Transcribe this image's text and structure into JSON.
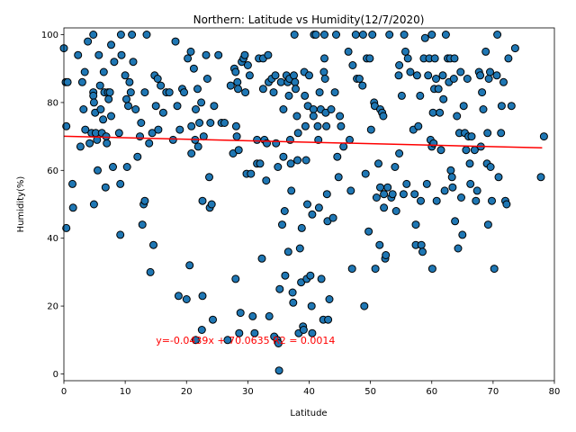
{
  "chart_data": {
    "type": "scatter",
    "title": "Northern: Latitude vs Humidity(12/7/2020)",
    "xlabel": "Latitude",
    "ylabel": "Humidity(%)",
    "xlim": [
      0,
      80
    ],
    "ylim": [
      -2,
      102
    ],
    "xticks": [
      "0",
      "10",
      "20",
      "30",
      "40",
      "50",
      "60",
      "70",
      "80"
    ],
    "yticks": [
      "0",
      "20",
      "40",
      "60",
      "80",
      "100"
    ],
    "grid": false,
    "marker_color": "#1f77b4",
    "marker_edge_color": "#000000",
    "regression": {
      "slope": -0.0439,
      "intercept": 70.0635,
      "r2": 0.0014,
      "x_range": [
        0,
        78
      ],
      "color": "#ff0000"
    },
    "annotation": {
      "text": "y=-0.0439x + 70.0635  R2 = 0.0014",
      "x": 15,
      "y": 10,
      "color": "#ff0000"
    },
    "points": [
      [
        0.0,
        96
      ],
      [
        0.3,
        86
      ],
      [
        0.4,
        73
      ],
      [
        0.4,
        43
      ],
      [
        0.6,
        86
      ],
      [
        1.4,
        56
      ],
      [
        1.5,
        49
      ],
      [
        2.3,
        94
      ],
      [
        2.7,
        67
      ],
      [
        3.0,
        86
      ],
      [
        3.2,
        78
      ],
      [
        3.4,
        89
      ],
      [
        3.5,
        72
      ],
      [
        3.9,
        98
      ],
      [
        4.2,
        68
      ],
      [
        4.5,
        71
      ],
      [
        4.8,
        100
      ],
      [
        4.8,
        83
      ],
      [
        4.8,
        82
      ],
      [
        4.9,
        50
      ],
      [
        4.9,
        80
      ],
      [
        5.1,
        77
      ],
      [
        5.2,
        71
      ],
      [
        5.4,
        69
      ],
      [
        5.5,
        60
      ],
      [
        5.7,
        94
      ],
      [
        5.9,
        85
      ],
      [
        6.0,
        78
      ],
      [
        6.2,
        71
      ],
      [
        6.4,
        75
      ],
      [
        6.5,
        89
      ],
      [
        6.6,
        83
      ],
      [
        6.8,
        55
      ],
      [
        6.9,
        70
      ],
      [
        7.0,
        68
      ],
      [
        7.2,
        83
      ],
      [
        7.3,
        81
      ],
      [
        7.5,
        83
      ],
      [
        7.7,
        76
      ],
      [
        7.7,
        97
      ],
      [
        8.0,
        61
      ],
      [
        8.2,
        92
      ],
      [
        9.0,
        71
      ],
      [
        9.2,
        56
      ],
      [
        9.2,
        41
      ],
      [
        9.3,
        100
      ],
      [
        9.4,
        94
      ],
      [
        10.0,
        88
      ],
      [
        10.2,
        81
      ],
      [
        10.3,
        61
      ],
      [
        10.5,
        79
      ],
      [
        10.7,
        86
      ],
      [
        10.9,
        83
      ],
      [
        11.1,
        100
      ],
      [
        11.3,
        92
      ],
      [
        11.7,
        78
      ],
      [
        12.0,
        64
      ],
      [
        12.4,
        70
      ],
      [
        12.6,
        74
      ],
      [
        12.8,
        44
      ],
      [
        13.0,
        50
      ],
      [
        13.2,
        51
      ],
      [
        13.5,
        100
      ],
      [
        13.2,
        83
      ],
      [
        13.9,
        68
      ],
      [
        14.1,
        30
      ],
      [
        14.4,
        71
      ],
      [
        14.6,
        38
      ],
      [
        14.8,
        88
      ],
      [
        15.0,
        79
      ],
      [
        15.3,
        87
      ],
      [
        15.4,
        72
      ],
      [
        15.8,
        85
      ],
      [
        16.2,
        77
      ],
      [
        16.7,
        83
      ],
      [
        17.2,
        83
      ],
      [
        17.8,
        69
      ],
      [
        18.2,
        98
      ],
      [
        18.5,
        79
      ],
      [
        18.7,
        23
      ],
      [
        18.9,
        72
      ],
      [
        19.3,
        84
      ],
      [
        19.6,
        83
      ],
      [
        20.0,
        22
      ],
      [
        20.2,
        93
      ],
      [
        20.5,
        32
      ],
      [
        20.7,
        95
      ],
      [
        20.8,
        73
      ],
      [
        20.8,
        65
      ],
      [
        21.2,
        90
      ],
      [
        21.4,
        69
      ],
      [
        21.5,
        10
      ],
      [
        21.5,
        78
      ],
      [
        21.8,
        84
      ],
      [
        21.9,
        67
      ],
      [
        22.1,
        74
      ],
      [
        22.4,
        80
      ],
      [
        22.5,
        13
      ],
      [
        22.6,
        51
      ],
      [
        22.6,
        23
      ],
      [
        22.8,
        70
      ],
      [
        23.2,
        94
      ],
      [
        23.4,
        87
      ],
      [
        23.7,
        58
      ],
      [
        23.8,
        49
      ],
      [
        23.9,
        74
      ],
      [
        24.1,
        50
      ],
      [
        24.3,
        16
      ],
      [
        24.5,
        79
      ],
      [
        25.2,
        94
      ],
      [
        25.7,
        74
      ],
      [
        26.2,
        74
      ],
      [
        26.7,
        10
      ],
      [
        27.2,
        85
      ],
      [
        27.6,
        65
      ],
      [
        27.8,
        90
      ],
      [
        28.0,
        89
      ],
      [
        28.0,
        28
      ],
      [
        28.1,
        73
      ],
      [
        28.2,
        70
      ],
      [
        28.3,
        86
      ],
      [
        28.4,
        84
      ],
      [
        28.5,
        66
      ],
      [
        28.6,
        12
      ],
      [
        28.8,
        18
      ],
      [
        29.0,
        92
      ],
      [
        29.3,
        93
      ],
      [
        29.5,
        94
      ],
      [
        29.6,
        83
      ],
      [
        29.8,
        59
      ],
      [
        30.0,
        91
      ],
      [
        30.3,
        88
      ],
      [
        30.5,
        59
      ],
      [
        30.8,
        17
      ],
      [
        31.1,
        12
      ],
      [
        31.5,
        69
      ],
      [
        31.5,
        62
      ],
      [
        31.8,
        93
      ],
      [
        32.0,
        62
      ],
      [
        32.3,
        34
      ],
      [
        32.5,
        84
      ],
      [
        32.5,
        93
      ],
      [
        32.7,
        69
      ],
      [
        33.0,
        57
      ],
      [
        33.1,
        68
      ],
      [
        33.3,
        94
      ],
      [
        33.4,
        86
      ],
      [
        33.5,
        17
      ],
      [
        33.9,
        87
      ],
      [
        34.2,
        83
      ],
      [
        34.3,
        11
      ],
      [
        34.5,
        88
      ],
      [
        34.6,
        68
      ],
      [
        34.8,
        10
      ],
      [
        34.9,
        61
      ],
      [
        35.0,
        9
      ],
      [
        35.1,
        1
      ],
      [
        35.2,
        25
      ],
      [
        35.4,
        86
      ],
      [
        35.6,
        44
      ],
      [
        35.8,
        78
      ],
      [
        35.8,
        64
      ],
      [
        36.0,
        48
      ],
      [
        36.1,
        29
      ],
      [
        36.3,
        88
      ],
      [
        36.5,
        86
      ],
      [
        36.6,
        36
      ],
      [
        36.7,
        82
      ],
      [
        36.8,
        87
      ],
      [
        36.9,
        69
      ],
      [
        37.0,
        62
      ],
      [
        37.1,
        54
      ],
      [
        37.3,
        24
      ],
      [
        37.4,
        21
      ],
      [
        37.5,
        88
      ],
      [
        37.6,
        100
      ],
      [
        37.7,
        86
      ],
      [
        37.8,
        84
      ],
      [
        38.0,
        76
      ],
      [
        38.1,
        63
      ],
      [
        38.2,
        71
      ],
      [
        38.3,
        12
      ],
      [
        38.5,
        37
      ],
      [
        38.7,
        27
      ],
      [
        38.8,
        43
      ],
      [
        39.0,
        14
      ],
      [
        39.1,
        13
      ],
      [
        39.2,
        89
      ],
      [
        39.3,
        82
      ],
      [
        39.4,
        73
      ],
      [
        39.5,
        63
      ],
      [
        39.6,
        28
      ],
      [
        39.7,
        50
      ],
      [
        39.8,
        79
      ],
      [
        40.0,
        88
      ],
      [
        40.2,
        29
      ],
      [
        40.4,
        20
      ],
      [
        40.5,
        47
      ],
      [
        40.5,
        12
      ],
      [
        40.7,
        78
      ],
      [
        40.7,
        76
      ],
      [
        40.8,
        100
      ],
      [
        41.1,
        100
      ],
      [
        41.4,
        73
      ],
      [
        41.5,
        69
      ],
      [
        41.6,
        49
      ],
      [
        41.7,
        83
      ],
      [
        41.9,
        78
      ],
      [
        42.0,
        28
      ],
      [
        42.3,
        16
      ],
      [
        42.4,
        89
      ],
      [
        42.5,
        100
      ],
      [
        42.5,
        93
      ],
      [
        42.6,
        87
      ],
      [
        42.7,
        77
      ],
      [
        42.8,
        73
      ],
      [
        42.9,
        53
      ],
      [
        43.0,
        45
      ],
      [
        43.1,
        16
      ],
      [
        43.3,
        22
      ],
      [
        43.6,
        78
      ],
      [
        43.9,
        46
      ],
      [
        44.2,
        83
      ],
      [
        44.4,
        100
      ],
      [
        44.6,
        64
      ],
      [
        44.8,
        58
      ],
      [
        45.0,
        76
      ],
      [
        45.2,
        73
      ],
      [
        45.6,
        67
      ],
      [
        46.4,
        95
      ],
      [
        46.6,
        69
      ],
      [
        46.8,
        54
      ],
      [
        47.0,
        31
      ],
      [
        47.1,
        91
      ],
      [
        47.6,
        100
      ],
      [
        47.8,
        87
      ],
      [
        48.2,
        87
      ],
      [
        48.7,
        85
      ],
      [
        48.8,
        100
      ],
      [
        49.0,
        20
      ],
      [
        49.2,
        59
      ],
      [
        49.4,
        93
      ],
      [
        49.7,
        42
      ],
      [
        49.9,
        93
      ],
      [
        50.1,
        72
      ],
      [
        50.3,
        100
      ],
      [
        50.6,
        80
      ],
      [
        50.7,
        79
      ],
      [
        50.8,
        31
      ],
      [
        51.0,
        52
      ],
      [
        51.3,
        62
      ],
      [
        51.5,
        38
      ],
      [
        51.6,
        78
      ],
      [
        51.6,
        55
      ],
      [
        51.9,
        77
      ],
      [
        52.1,
        76
      ],
      [
        52.2,
        53
      ],
      [
        52.2,
        49
      ],
      [
        52.4,
        34
      ],
      [
        52.5,
        35
      ],
      [
        52.8,
        55
      ],
      [
        53.1,
        100
      ],
      [
        53.4,
        52
      ],
      [
        53.6,
        53
      ],
      [
        54.0,
        61
      ],
      [
        54.2,
        48
      ],
      [
        54.6,
        88
      ],
      [
        54.7,
        91
      ],
      [
        54.7,
        65
      ],
      [
        55.1,
        82
      ],
      [
        55.4,
        53
      ],
      [
        55.5,
        100
      ],
      [
        55.7,
        95
      ],
      [
        55.9,
        56
      ],
      [
        56.1,
        93
      ],
      [
        56.5,
        89
      ],
      [
        57.0,
        72
      ],
      [
        57.2,
        53
      ],
      [
        57.4,
        44
      ],
      [
        57.4,
        38
      ],
      [
        57.6,
        88
      ],
      [
        57.8,
        73
      ],
      [
        58.1,
        82
      ],
      [
        58.2,
        51
      ],
      [
        58.3,
        38
      ],
      [
        58.5,
        36
      ],
      [
        58.7,
        93
      ],
      [
        58.9,
        99
      ],
      [
        59.2,
        56
      ],
      [
        59.4,
        88
      ],
      [
        59.6,
        93
      ],
      [
        59.8,
        69
      ],
      [
        60.0,
        100
      ],
      [
        60.0,
        67
      ],
      [
        60.1,
        31
      ],
      [
        60.2,
        77
      ],
      [
        60.3,
        68
      ],
      [
        60.4,
        84
      ],
      [
        60.5,
        93
      ],
      [
        60.7,
        87
      ],
      [
        60.8,
        51
      ],
      [
        61.1,
        84
      ],
      [
        61.3,
        77
      ],
      [
        61.5,
        66
      ],
      [
        61.8,
        88
      ],
      [
        61.9,
        81
      ],
      [
        62.1,
        54
      ],
      [
        62.3,
        100
      ],
      [
        62.6,
        93
      ],
      [
        62.8,
        86
      ],
      [
        63.0,
        93
      ],
      [
        63.1,
        60
      ],
      [
        63.3,
        58
      ],
      [
        63.4,
        55
      ],
      [
        63.6,
        87
      ],
      [
        63.7,
        93
      ],
      [
        63.8,
        45
      ],
      [
        64.1,
        76
      ],
      [
        64.3,
        37
      ],
      [
        64.5,
        71
      ],
      [
        64.7,
        89
      ],
      [
        64.8,
        52
      ],
      [
        65.0,
        41
      ],
      [
        65.2,
        79
      ],
      [
        65.4,
        71
      ],
      [
        65.6,
        66
      ],
      [
        65.8,
        87
      ],
      [
        66.0,
        70
      ],
      [
        66.2,
        62
      ],
      [
        66.3,
        56
      ],
      [
        66.5,
        70
      ],
      [
        67.0,
        66
      ],
      [
        67.2,
        51
      ],
      [
        67.4,
        54
      ],
      [
        67.7,
        89
      ],
      [
        67.9,
        88
      ],
      [
        68.0,
        67
      ],
      [
        68.2,
        83
      ],
      [
        68.4,
        78
      ],
      [
        68.8,
        95
      ],
      [
        69.0,
        62
      ],
      [
        69.1,
        71
      ],
      [
        69.2,
        44
      ],
      [
        69.3,
        87
      ],
      [
        69.5,
        89
      ],
      [
        69.6,
        61
      ],
      [
        69.8,
        51
      ],
      [
        70.2,
        31
      ],
      [
        70.6,
        88
      ],
      [
        70.7,
        100
      ],
      [
        70.9,
        58
      ],
      [
        71.3,
        71
      ],
      [
        71.4,
        79
      ],
      [
        71.7,
        86
      ],
      [
        72.0,
        51
      ],
      [
        72.2,
        50
      ],
      [
        72.5,
        93
      ],
      [
        73.0,
        79
      ],
      [
        73.6,
        96
      ],
      [
        77.8,
        58
      ],
      [
        78.3,
        70
      ]
    ]
  }
}
